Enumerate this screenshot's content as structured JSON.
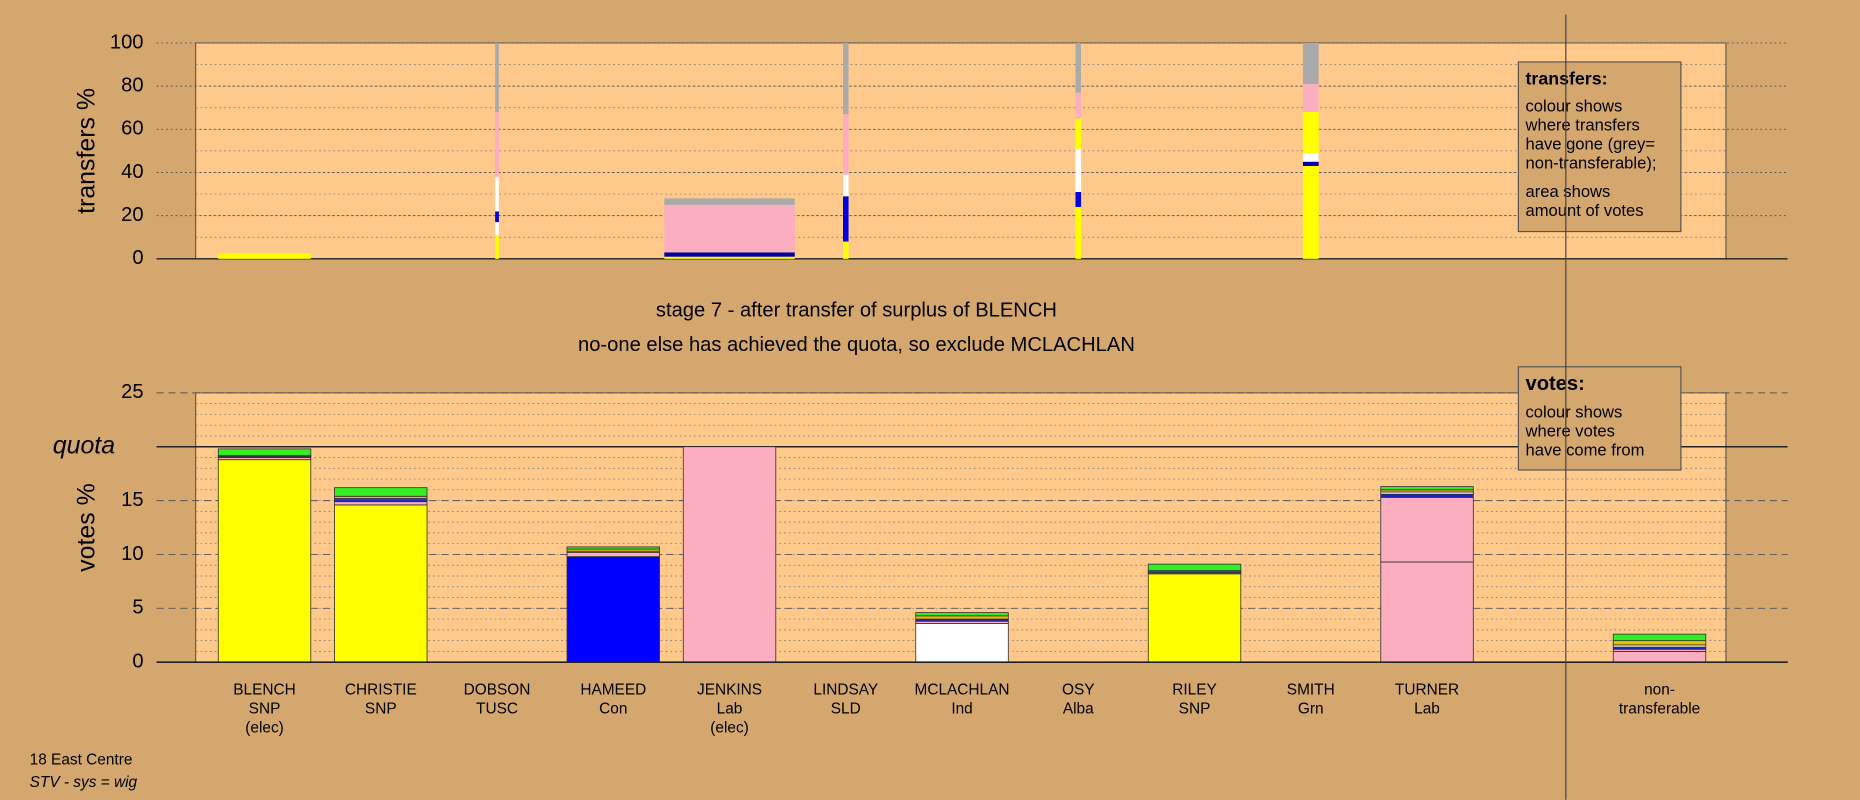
{
  "chart_data": [
    {
      "type": "transfer_bar",
      "ylabel": "transfers %",
      "ylim": [
        0,
        100
      ],
      "yticks": [
        0,
        20,
        40,
        60,
        80,
        100
      ],
      "minor_grid_step": 10,
      "grid_style": "dotted",
      "plot_color": "#ffc98b",
      "bars": [
        {
          "width": 1,
          "segments": [
            {
              "color": "#ffff00",
              "value": 2.5
            }
          ]
        },
        null,
        {
          "width": 0.04,
          "segments": [
            {
              "color": "#ffff00",
              "value": 11
            },
            {
              "color": "#ffffff",
              "value": 6
            },
            {
              "color": "#0000e0",
              "value": 5
            },
            {
              "color": "#ffffff",
              "value": 16
            },
            {
              "color": "#fbaec0",
              "value": 30
            },
            {
              "color": "#aaaaaa",
              "value": 32
            }
          ]
        },
        null,
        {
          "width": 1.41,
          "segments": [
            {
              "color": "#ffff00",
              "value": 1
            },
            {
              "color": "#0000a0",
              "value": 2
            },
            {
              "color": "#fbaec0",
              "value": 22
            },
            {
              "color": "#aaaaaa",
              "value": 3
            }
          ]
        },
        {
          "width": 0.06,
          "segments": [
            {
              "color": "#ffff00",
              "value": 8
            },
            {
              "color": "#0000e0",
              "value": 21
            },
            {
              "color": "#ffffff",
              "value": 10
            },
            {
              "color": "#fbaec0",
              "value": 28
            },
            {
              "color": "#aaaaaa",
              "value": 33
            }
          ]
        },
        null,
        {
          "width": 0.06,
          "segments": [
            {
              "color": "#ffff00",
              "value": 24
            },
            {
              "color": "#0000e0",
              "value": 7
            },
            {
              "color": "#ffffff",
              "value": 20
            },
            {
              "color": "#ffff00",
              "value": 14
            },
            {
              "color": "#fbaec0",
              "value": 12
            },
            {
              "color": "#aaaaaa",
              "value": 23
            }
          ]
        },
        null,
        {
          "width": 0.17,
          "segments": [
            {
              "color": "#ffff00",
              "value": 43
            },
            {
              "color": "#0000a0",
              "value": 2
            },
            {
              "color": "#ffffff",
              "value": 4
            },
            {
              "color": "#ffff00",
              "value": 19
            },
            {
              "color": "#fbaec0",
              "value": 13
            },
            {
              "color": "#aaaaaa",
              "value": 19
            }
          ]
        },
        null,
        null
      ],
      "note": {
        "title": "transfers:",
        "paragraphs": [
          [
            "colour shows",
            "where transfers",
            "have gone (grey=",
            "non-transferable);"
          ],
          [
            "area shows",
            "amount of votes"
          ]
        ]
      }
    },
    {
      "type": "stacked_bar",
      "title": "stage 7 - after transfer of surplus of BLENCH",
      "subtitle": "no-one else has achieved the quota, so exclude MCLACHLAN",
      "ylabel": "votes %",
      "ylim": [
        0,
        25
      ],
      "yticks": [
        0,
        5,
        10,
        15,
        {
          "value": 20,
          "label": "quota"
        },
        25
      ],
      "minor_grid_step": 1,
      "grid_style": "dashed",
      "plot_color": "#ffc98b",
      "categories": [
        [
          "BLENCH",
          "SNP",
          "(elec)"
        ],
        [
          "CHRISTIE",
          "SNP"
        ],
        [
          "DOBSON",
          "TUSC"
        ],
        [
          "HAMEED",
          "Con"
        ],
        [
          "JENKINS",
          "Lab",
          "(elec)"
        ],
        [
          "LINDSAY",
          "SLD"
        ],
        [
          "MCLACHLAN",
          "Ind"
        ],
        [
          "OSY",
          "Alba"
        ],
        [
          "RILEY",
          "SNP"
        ],
        [
          "SMITH",
          "Grn"
        ],
        [
          "TURNER",
          "Lab"
        ],
        [
          "non-",
          "transferable"
        ]
      ],
      "series": [
        {
          "color": "#ffff00",
          "values": [
            18.8,
            14.6,
            0,
            0,
            0,
            0,
            0,
            0,
            8.2,
            0,
            0,
            0
          ]
        },
        {
          "color": "#0000ff",
          "values": [
            0,
            0,
            0,
            9.8,
            0,
            0,
            0,
            0,
            0,
            0,
            0,
            0
          ]
        },
        {
          "color": "#fbaec0",
          "values": [
            0,
            0,
            0,
            0,
            20,
            0,
            0,
            0,
            0,
            0,
            9.3,
            1.0
          ]
        },
        {
          "color": "#ffffff",
          "values": [
            0,
            0,
            0,
            0,
            0,
            0,
            3.6,
            0,
            0,
            0,
            0,
            0
          ]
        },
        {
          "color": "#fbaec0",
          "values": [
            0.2,
            0.3,
            0,
            0.4,
            0,
            0,
            0.2,
            0,
            0.1,
            0,
            6.0,
            0.2
          ]
        },
        {
          "color": "#2020c0",
          "values": [
            0.1,
            0.2,
            0,
            0,
            0,
            0,
            0.2,
            0,
            0.1,
            0,
            0.3,
            0.2
          ]
        },
        {
          "color": "#ffffff",
          "values": [
            0.1,
            0.1,
            0,
            0.1,
            0,
            0,
            0,
            0,
            0,
            0,
            0.2,
            0.2
          ]
        },
        {
          "color": "#e8c000",
          "values": [
            0,
            0.2,
            0,
            0.2,
            0,
            0,
            0.3,
            0,
            0.1,
            0,
            0.2,
            0.4
          ]
        },
        {
          "color": "#33ee22",
          "values": [
            0.6,
            0.8,
            0,
            0.2,
            0,
            0,
            0.3,
            0,
            0.6,
            0,
            0.3,
            0.6
          ]
        }
      ],
      "note": {
        "title": "votes:",
        "paragraphs": [
          [
            "colour shows",
            "where votes",
            "have come from"
          ]
        ]
      }
    }
  ],
  "footer": [
    "18 East Centre",
    "STV - sys = wig"
  ]
}
